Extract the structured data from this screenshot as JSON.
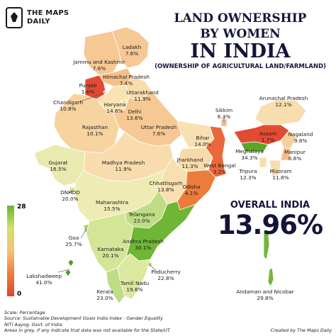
{
  "brand": {
    "line1": "THE MAPS",
    "line2": "DAILY"
  },
  "title": {
    "line1": "LAND OWNERSHIP",
    "line2": "BY WOMEN",
    "line3": "IN INDIA",
    "subtitle": "(OWNERSHIP OF AGRICULTURAL LAND/FARMLAND)"
  },
  "overall": {
    "label": "OVERALL INDIA",
    "value": "13.96%"
  },
  "scale": {
    "max": "28",
    "min": "0",
    "colors": [
      "#6bb431",
      "#d7df6b",
      "#f3c27b",
      "#ed7d3a",
      "#df4630"
    ]
  },
  "notes": [
    "Scale: Percentage",
    "Source: Sustainable Development Goals India Index - Gender Equality",
    "NITI Aayog, Govt. of India",
    "Areas in grey, if any indicate that data was not available for the State/UT."
  ],
  "credit": "Created by The Maps Daily",
  "regions": [
    {
      "name": "Ladakh",
      "value": "7.6%",
      "color": "#f6c894"
    },
    {
      "name": "Jammu and Kashmir",
      "value": "7.6%",
      "color": "#f6c894"
    },
    {
      "name": "Himachal Pradesh",
      "value": "7.4%",
      "color": "#f4c08a"
    },
    {
      "name": "Punjab",
      "value": "1.6%",
      "color": "#e34a33"
    },
    {
      "name": "Chandigarh",
      "value": "10.8%",
      "color": "#f6d6a8"
    },
    {
      "name": "Uttarakhand",
      "value": "11.9%",
      "color": "#f8dcae"
    },
    {
      "name": "Haryana",
      "value": "14.8%",
      "color": "#f9e3b4"
    },
    {
      "name": "Delhi",
      "value": "13.6%",
      "color": "#f8dfb0"
    },
    {
      "name": "Rajasthan",
      "value": "10.1%",
      "color": "#f7d3a0"
    },
    {
      "name": "Uttar Pradesh",
      "value": "7.6%",
      "color": "#f6c894"
    },
    {
      "name": "Bihar",
      "value": "14.0%",
      "color": "#f8e0b2"
    },
    {
      "name": "Sikkim",
      "value": "6.3%",
      "color": "#f3b883"
    },
    {
      "name": "Arunachal Pradesh",
      "value": "12.1%",
      "color": "#f8ddae"
    },
    {
      "name": "Assam",
      "value": "1.7%",
      "color": "#e34a33"
    },
    {
      "name": "Nagaland",
      "value": "9.8%",
      "color": "#f6d19d"
    },
    {
      "name": "Meghalaya",
      "value": "34.3%",
      "color": "#5aa62a"
    },
    {
      "name": "Manipur",
      "value": "6.8%",
      "color": "#f4bd86"
    },
    {
      "name": "Tripura",
      "value": "12.3%",
      "color": "#f8ddae"
    },
    {
      "name": "Mizoram",
      "value": "11.8%",
      "color": "#f8dcae"
    },
    {
      "name": "Gujarat",
      "value": "16.5%",
      "color": "#e9eab0"
    },
    {
      "name": "Madhya Pradesh",
      "value": "11.9%",
      "color": "#f8dcae"
    },
    {
      "name": "Jharkhand",
      "value": "11.3%",
      "color": "#f7daa9"
    },
    {
      "name": "West Bengal",
      "value": "3.2%",
      "color": "#e9673a"
    },
    {
      "name": "Chhattisgarh",
      "value": "13.8%",
      "color": "#f8dfb0"
    },
    {
      "name": "Odisha",
      "value": "4.1%",
      "color": "#ec7c3a"
    },
    {
      "name": "DNHDD",
      "value": "20.0%",
      "color": "#dbe79b"
    },
    {
      "name": "Maharashtra",
      "value": "15.5%",
      "color": "#eeebb4"
    },
    {
      "name": "Telangana",
      "value": "23.0%",
      "color": "#bfdc86"
    },
    {
      "name": "Goa",
      "value": "25.7%",
      "color": "#a3d070"
    },
    {
      "name": "Karnataka",
      "value": "20.1%",
      "color": "#d5e597"
    },
    {
      "name": "Andhra Pradesh",
      "value": "30.1%",
      "color": "#6fb536"
    },
    {
      "name": "Puducherry",
      "value": "22.8%",
      "color": "#c2dc87"
    },
    {
      "name": "Lakshadweep",
      "value": "41.0%",
      "color": "#4a9a24"
    },
    {
      "name": "Kerala",
      "value": "23.0%",
      "color": "#bfdc86"
    },
    {
      "name": "Tamil Nadu",
      "value": "19.6%",
      "color": "#dce89e"
    },
    {
      "name": "Andaman and Nicobar",
      "value": "29.8%",
      "color": "#72b63a"
    }
  ]
}
